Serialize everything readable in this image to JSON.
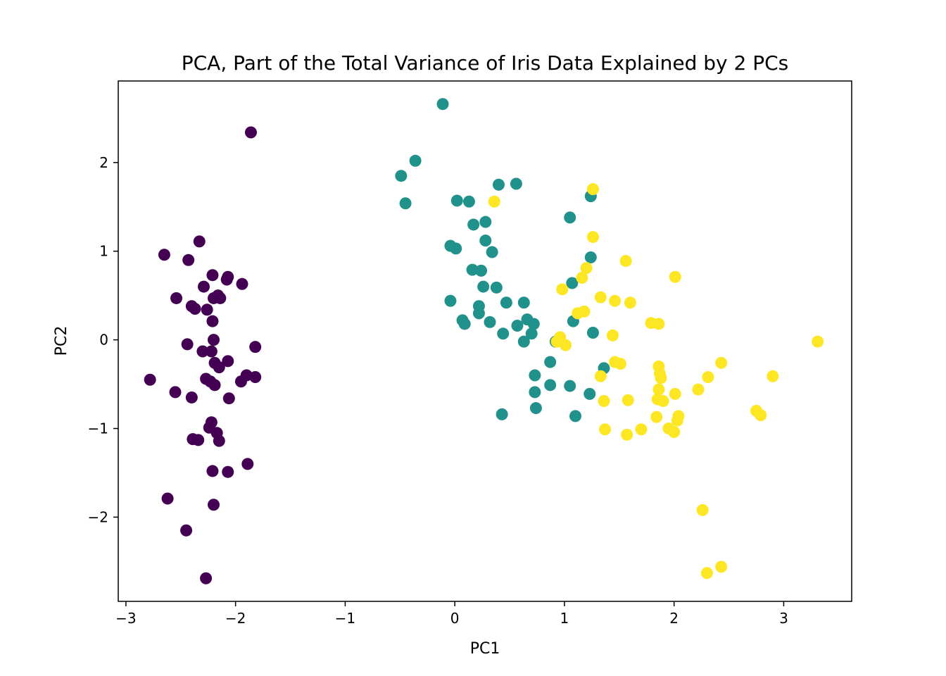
{
  "chart_data": {
    "type": "scatter",
    "title": "PCA, Part of the Total Variance of Iris Data Explained by 2 PCs",
    "xlabel": "PC1",
    "ylabel": "PC2",
    "xlim": [
      -3.07,
      3.62
    ],
    "ylim": [
      -2.95,
      2.92
    ],
    "x_ticks": [
      -3,
      -2,
      -1,
      0,
      1,
      2,
      3
    ],
    "y_ticks": [
      -2,
      -1,
      0,
      1,
      2
    ],
    "x_tick_labels": [
      "−3",
      "−2",
      "−1",
      "0",
      "1",
      "2",
      "3"
    ],
    "y_tick_labels": [
      "−2",
      "−1",
      "0",
      "1",
      "2"
    ],
    "grid": false,
    "series": [
      {
        "color": "#440154",
        "points": [
          [
            -1.86,
            2.34
          ],
          [
            -2.65,
            0.96
          ],
          [
            -2.33,
            1.11
          ],
          [
            -2.43,
            0.9
          ],
          [
            -2.54,
            0.47
          ],
          [
            -2.29,
            0.6
          ],
          [
            -2.21,
            0.73
          ],
          [
            -2.07,
            0.71
          ],
          [
            -2.08,
            0.68
          ],
          [
            -1.94,
            0.63
          ],
          [
            -2.16,
            0.5
          ],
          [
            -2.2,
            0.47
          ],
          [
            -2.14,
            0.47
          ],
          [
            -2.4,
            0.38
          ],
          [
            -2.37,
            0.35
          ],
          [
            -2.26,
            0.34
          ],
          [
            -2.21,
            0.21
          ],
          [
            -2.2,
            0.0
          ],
          [
            -2.44,
            -0.05
          ],
          [
            -2.3,
            -0.13
          ],
          [
            -2.22,
            -0.13
          ],
          [
            -1.82,
            -0.08
          ],
          [
            -2.19,
            -0.26
          ],
          [
            -2.15,
            -0.31
          ],
          [
            -2.07,
            -0.24
          ],
          [
            -2.78,
            -0.45
          ],
          [
            -2.27,
            -0.44
          ],
          [
            -2.23,
            -0.47
          ],
          [
            -2.19,
            -0.51
          ],
          [
            -1.95,
            -0.47
          ],
          [
            -1.9,
            -0.4
          ],
          [
            -1.82,
            -0.42
          ],
          [
            -2.55,
            -0.59
          ],
          [
            -2.4,
            -0.65
          ],
          [
            -2.06,
            -0.66
          ],
          [
            -2.22,
            -0.93
          ],
          [
            -2.24,
            -0.99
          ],
          [
            -2.17,
            -1.05
          ],
          [
            -2.39,
            -1.12
          ],
          [
            -2.34,
            -1.13
          ],
          [
            -2.15,
            -1.14
          ],
          [
            -2.21,
            -1.48
          ],
          [
            -2.07,
            -1.49
          ],
          [
            -1.89,
            -1.4
          ],
          [
            -2.62,
            -1.79
          ],
          [
            -2.2,
            -1.86
          ],
          [
            -2.45,
            -2.15
          ],
          [
            -2.27,
            -2.69
          ]
        ]
      },
      {
        "color": "#21918c",
        "points": [
          [
            -0.11,
            2.66
          ],
          [
            -0.36,
            2.02
          ],
          [
            -0.49,
            1.85
          ],
          [
            -0.45,
            1.54
          ],
          [
            0.4,
            1.75
          ],
          [
            0.56,
            1.76
          ],
          [
            0.02,
            1.57
          ],
          [
            0.13,
            1.56
          ],
          [
            0.17,
            1.3
          ],
          [
            0.28,
            1.33
          ],
          [
            1.24,
            1.62
          ],
          [
            1.05,
            1.38
          ],
          [
            -0.04,
            1.06
          ],
          [
            0.01,
            1.03
          ],
          [
            0.28,
            1.12
          ],
          [
            0.34,
            0.99
          ],
          [
            0.16,
            0.79
          ],
          [
            0.24,
            0.78
          ],
          [
            0.26,
            0.6
          ],
          [
            0.38,
            0.59
          ],
          [
            1.24,
            0.93
          ],
          [
            1.07,
            0.64
          ],
          [
            -0.04,
            0.44
          ],
          [
            0.22,
            0.38
          ],
          [
            0.47,
            0.42
          ],
          [
            0.63,
            0.42
          ],
          [
            0.22,
            0.3
          ],
          [
            0.07,
            0.22
          ],
          [
            0.09,
            0.18
          ],
          [
            0.32,
            0.2
          ],
          [
            0.66,
            0.23
          ],
          [
            0.72,
            0.18
          ],
          [
            0.57,
            0.16
          ],
          [
            0.7,
            0.07
          ],
          [
            0.44,
            0.07
          ],
          [
            0.63,
            -0.02
          ],
          [
            1.08,
            0.21
          ],
          [
            1.26,
            0.08
          ],
          [
            0.92,
            -0.02
          ],
          [
            1.36,
            -0.32
          ],
          [
            0.87,
            -0.25
          ],
          [
            0.73,
            -0.4
          ],
          [
            0.73,
            -0.59
          ],
          [
            0.87,
            -0.51
          ],
          [
            1.05,
            -0.52
          ],
          [
            1.23,
            -0.61
          ],
          [
            0.74,
            -0.77
          ],
          [
            1.1,
            -0.86
          ],
          [
            0.43,
            -0.84
          ]
        ]
      },
      {
        "color": "#fde725",
        "points": [
          [
            1.26,
            1.7
          ],
          [
            0.36,
            1.56
          ],
          [
            1.26,
            1.16
          ],
          [
            1.2,
            0.81
          ],
          [
            1.56,
            0.89
          ],
          [
            2.01,
            0.71
          ],
          [
            1.16,
            0.7
          ],
          [
            0.98,
            0.57
          ],
          [
            1.33,
            0.48
          ],
          [
            1.46,
            0.44
          ],
          [
            1.6,
            0.42
          ],
          [
            1.12,
            0.3
          ],
          [
            1.18,
            0.32
          ],
          [
            1.79,
            0.19
          ],
          [
            1.86,
            0.18
          ],
          [
            1.44,
            0.05
          ],
          [
            0.93,
            -0.02
          ],
          [
            0.96,
            0.03
          ],
          [
            1.01,
            -0.06
          ],
          [
            3.31,
            -0.02
          ],
          [
            1.46,
            -0.25
          ],
          [
            1.51,
            -0.27
          ],
          [
            2.43,
            -0.26
          ],
          [
            1.86,
            -0.3
          ],
          [
            1.87,
            -0.38
          ],
          [
            1.88,
            -0.43
          ],
          [
            2.31,
            -0.42
          ],
          [
            2.9,
            -0.41
          ],
          [
            1.33,
            -0.41
          ],
          [
            2.22,
            -0.56
          ],
          [
            1.86,
            -0.56
          ],
          [
            2.01,
            -0.61
          ],
          [
            1.36,
            -0.69
          ],
          [
            1.58,
            -0.68
          ],
          [
            1.85,
            -0.67
          ],
          [
            1.9,
            -0.69
          ],
          [
            1.84,
            -0.87
          ],
          [
            2.04,
            -0.86
          ],
          [
            2.03,
            -0.91
          ],
          [
            2.75,
            -0.8
          ],
          [
            2.79,
            -0.85
          ],
          [
            1.95,
            -1.0
          ],
          [
            2.0,
            -1.04
          ],
          [
            1.37,
            -1.01
          ],
          [
            1.57,
            -1.07
          ],
          [
            1.7,
            -1.01
          ],
          [
            2.26,
            -1.92
          ],
          [
            2.43,
            -2.56
          ],
          [
            2.3,
            -2.63
          ]
        ]
      }
    ]
  }
}
